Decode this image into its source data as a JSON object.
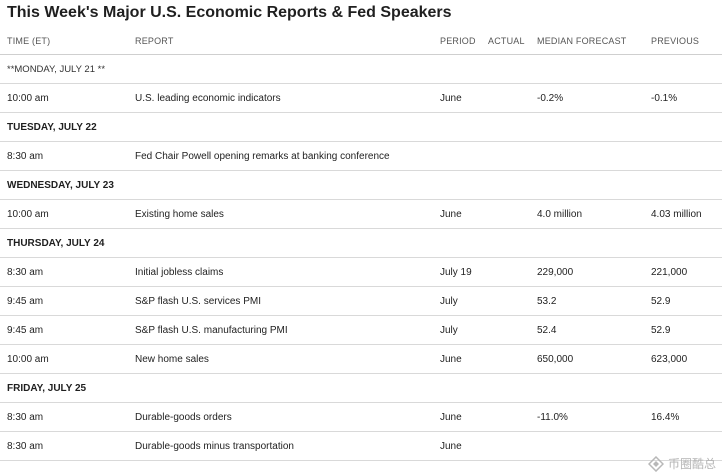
{
  "title": "This Week's Major U.S. Economic Reports & Fed Speakers",
  "columns": {
    "time": "TIME (ET)",
    "report": "REPORT",
    "period": "PERIOD",
    "actual": "ACTUAL",
    "median": "MEDIAN FORECAST",
    "previous": "PREVIOUS"
  },
  "rows": [
    {
      "type": "day-plain",
      "label": "**MONDAY, JULY 21 **"
    },
    {
      "type": "data",
      "time": "10:00 am",
      "report": "U.S. leading economic indicators",
      "period": "June",
      "actual": "",
      "median": "-0.2%",
      "previous": "-0.1%"
    },
    {
      "type": "day",
      "label": "TUESDAY, JULY 22"
    },
    {
      "type": "data",
      "time": "8:30 am",
      "report": "Fed Chair Powell opening remarks at banking conference",
      "period": "",
      "actual": "",
      "median": "",
      "previous": ""
    },
    {
      "type": "day",
      "label": "WEDNESDAY, JULY 23"
    },
    {
      "type": "data",
      "time": "10:00 am",
      "report": "Existing home sales",
      "period": "June",
      "actual": "",
      "median": "4.0 million",
      "previous": "4.03 million"
    },
    {
      "type": "day",
      "label": "THURSDAY, JULY 24"
    },
    {
      "type": "data",
      "time": "8:30 am",
      "report": "Initial jobless claims",
      "period": "July 19",
      "actual": "",
      "median": "229,000",
      "previous": "221,000"
    },
    {
      "type": "data",
      "time": "9:45 am",
      "report": "S&P flash U.S. services PMI",
      "period": "July",
      "actual": "",
      "median": "53.2",
      "previous": "52.9"
    },
    {
      "type": "data",
      "time": "9:45 am",
      "report": "S&P flash U.S. manufacturing PMI",
      "period": "July",
      "actual": "",
      "median": "52.4",
      "previous": "52.9"
    },
    {
      "type": "data",
      "time": "10:00 am",
      "report": "New home sales",
      "period": "June",
      "actual": "",
      "median": "650,000",
      "previous": "623,000"
    },
    {
      "type": "day",
      "label": "FRIDAY, JULY 25"
    },
    {
      "type": "data",
      "time": "8:30 am",
      "report": "Durable-goods orders",
      "period": "June",
      "actual": "",
      "median": "-11.0%",
      "previous": "16.4%"
    },
    {
      "type": "data",
      "time": "8:30 am",
      "report": "Durable-goods minus transportation",
      "period": "June",
      "actual": "",
      "median": "",
      "previous": ""
    }
  ],
  "watermark": {
    "text": "币圈酷总",
    "icon": "watermark-logo-icon"
  }
}
